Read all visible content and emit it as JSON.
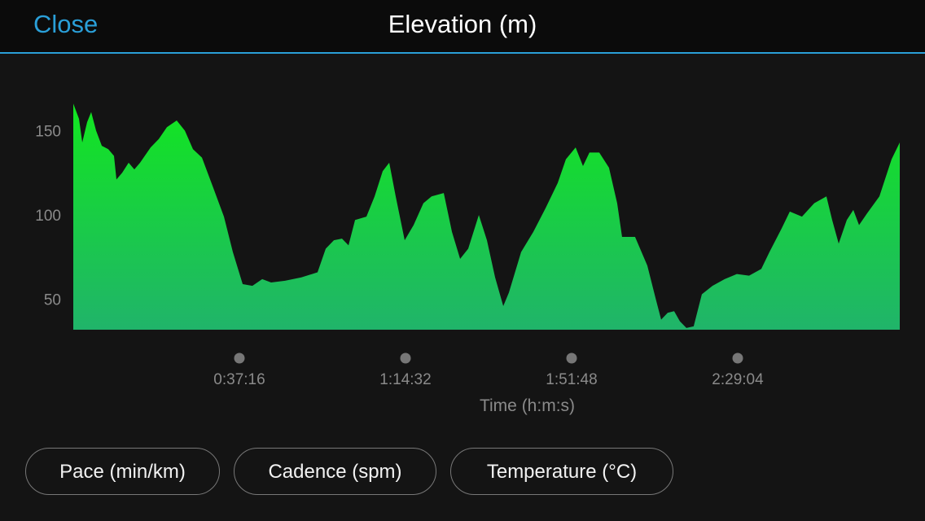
{
  "header": {
    "close": "Close"
  },
  "chart_data": {
    "type": "area",
    "title": "Elevation (m)",
    "xlabel": "Time (h:m:s)",
    "x": [
      0,
      77,
      121,
      186,
      241,
      307,
      384,
      471,
      548,
      581,
      658,
      745,
      822,
      899,
      1041,
      1151,
      1260,
      1392,
      1502,
      1611,
      1732,
      1885,
      2028,
      2148,
      2280,
      2411,
      2543,
      2663,
      2850,
      3069,
      3288,
      3398,
      3508,
      3617,
      3705,
      3793,
      3946,
      4056,
      4165,
      4253,
      4340,
      4461,
      4581,
      4713,
      4823,
      4987,
      5097,
      5207,
      5316,
      5459,
      5568,
      5678,
      5788,
      5864,
      6028,
      6193,
      6357,
      6521,
      6631,
      6762,
      6861,
      6948,
      7080,
      7211,
      7321,
      7387,
      7562,
      7727,
      7836,
      7913,
      8001,
      8088,
      8165,
      8253,
      8351,
      8461,
      8604,
      8768,
      8932,
      9097,
      9261,
      9371,
      9535,
      9645,
      9809,
      9974,
      10138,
      10215,
      10303,
      10412,
      10500,
      10577,
      10686,
      10851,
      11015,
      11125
    ],
    "values": [
      166,
      157,
      143,
      155,
      161,
      150,
      141,
      139,
      135,
      121,
      125,
      131,
      127,
      131,
      140,
      145,
      152,
      156,
      150,
      139,
      134,
      116,
      99,
      78,
      59,
      58,
      62,
      60,
      61,
      63,
      66,
      80,
      85,
      86,
      82,
      97,
      99,
      111,
      126,
      131,
      111,
      85,
      94,
      107,
      111,
      113,
      90,
      74,
      80,
      100,
      85,
      63,
      46,
      54,
      78,
      90,
      104,
      119,
      133,
      140,
      129,
      137,
      137,
      128,
      107,
      87,
      87,
      70,
      51,
      38,
      42,
      43,
      37,
      33,
      34,
      53,
      58,
      62,
      65,
      64,
      68,
      78,
      92,
      102,
      99,
      107,
      111,
      97,
      83,
      97,
      103,
      94,
      101,
      111,
      133,
      143
    ],
    "color_top": "#12e620",
    "color_bottom": "#20b46a",
    "xlim": [
      0,
      11125
    ],
    "ylim": [
      32,
      170
    ],
    "xticks": [
      {
        "value": 2236,
        "label": "0:37:16"
      },
      {
        "value": 4472,
        "label": "1:14:32"
      },
      {
        "value": 6708,
        "label": "1:51:48"
      },
      {
        "value": 8944,
        "label": "2:29:04"
      }
    ],
    "yticks": [
      50,
      100,
      150
    ],
    "grid": false
  },
  "buttons": [
    "Pace (min/km)",
    "Cadence (spm)",
    "Temperature (°C)"
  ]
}
